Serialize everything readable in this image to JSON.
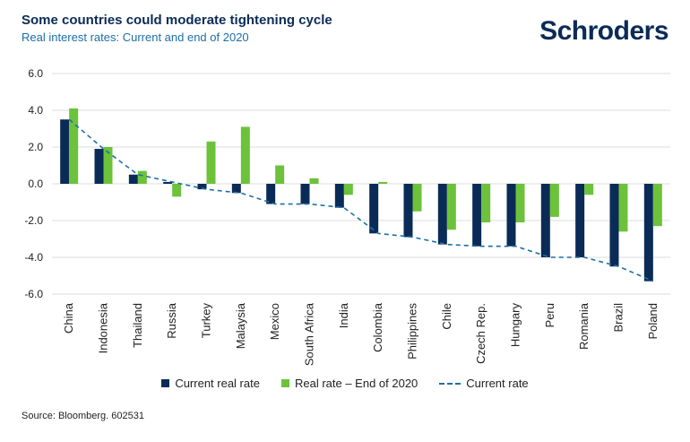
{
  "header": {
    "title": "Some countries could moderate tightening cycle",
    "subtitle": "Real interest rates: Current and end of 2020",
    "logo": "Schroders"
  },
  "legend": {
    "current_real": "Current real rate",
    "end2020": "Real rate – End of 2020",
    "current_rate": "Current rate"
  },
  "source": "Source: Bloomberg. 602531",
  "colors": {
    "current_real": "#0b2b57",
    "end2020": "#6cc23a",
    "current_rate": "#1d6fa6",
    "grid": "#dddddd"
  },
  "chart_data": {
    "type": "bar",
    "title": "Some countries could moderate tightening cycle",
    "subtitle": "Real interest rates: Current and end of 2020",
    "categories": [
      "China",
      "Indonesia",
      "Thailand",
      "Russia",
      "Turkey",
      "Malaysia",
      "Mexico",
      "South Africa",
      "India",
      "Colombia",
      "Philippines",
      "Chile",
      "Czech Rep.",
      "Hungary",
      "Peru",
      "Romania",
      "Brazil",
      "Poland"
    ],
    "series": [
      {
        "name": "Current real rate",
        "values": [
          3.5,
          1.9,
          0.5,
          0.1,
          -0.3,
          -0.5,
          -1.1,
          -1.1,
          -1.3,
          -2.7,
          -2.9,
          -3.3,
          -3.4,
          -3.4,
          -4.0,
          -4.0,
          -4.5,
          -5.3
        ]
      },
      {
        "name": "Real rate – End of 2020",
        "values": [
          4.1,
          2.0,
          0.7,
          -0.7,
          2.3,
          3.1,
          1.0,
          0.3,
          -0.6,
          0.1,
          -1.5,
          -2.5,
          -2.1,
          -2.1,
          -1.8,
          -0.6,
          -2.6,
          -2.3
        ]
      },
      {
        "name": "Current rate",
        "type": "line",
        "style": "dashed",
        "values": [
          3.5,
          1.9,
          0.5,
          0.1,
          -0.3,
          -0.5,
          -1.1,
          -1.1,
          -1.3,
          -2.7,
          -2.9,
          -3.3,
          -3.4,
          -3.4,
          -4.0,
          -4.0,
          -4.5,
          -5.3
        ]
      }
    ],
    "ylim": [
      -6.0,
      6.0
    ],
    "yticks": [
      "6.0",
      "4.0",
      "2.0",
      "0.0",
      "-2.0",
      "-4.0",
      "-6.0"
    ],
    "ytick_values": [
      6,
      4,
      2,
      0,
      -2,
      -4,
      -6
    ],
    "grid": true,
    "legend_position": "bottom"
  }
}
